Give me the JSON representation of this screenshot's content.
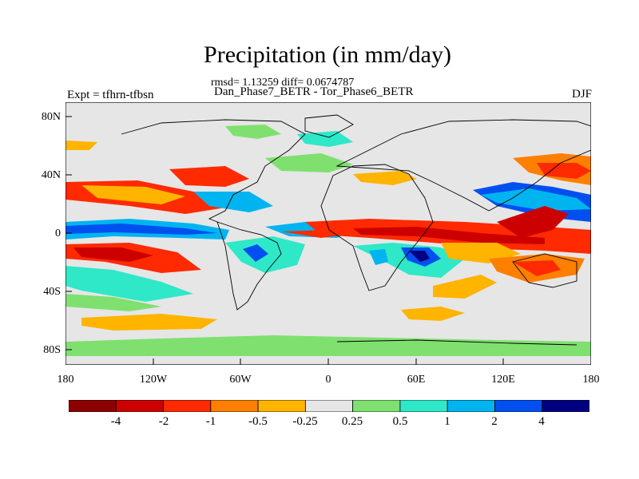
{
  "title": "Precipitation (in mm/day)",
  "stats_line": "rmsd= 1.13259  diff= 0.0674787",
  "comparison_line": "Dan_Phase7_BETR - Tor_Phase6_BETR",
  "experiment_label": "Expt = tfhrn-tfbsn",
  "season_label": "DJF",
  "lat_ticks": [
    "80N",
    "40N",
    "0",
    "40S",
    "80S"
  ],
  "lon_ticks": [
    "180",
    "120W",
    "60W",
    "0",
    "60E",
    "120E",
    "180"
  ],
  "colorbar": {
    "colors": [
      "#8b0000",
      "#cd0000",
      "#ff2a00",
      "#ff7f00",
      "#ffb400",
      "#e6e6e6",
      "#7fe070",
      "#2ee8c8",
      "#00b4f0",
      "#0050f0",
      "#000080"
    ],
    "labels": [
      "-4",
      "-2",
      "-1",
      "-0.5",
      "-0.25",
      "0.25",
      "0.5",
      "1",
      "2",
      "4"
    ]
  }
}
